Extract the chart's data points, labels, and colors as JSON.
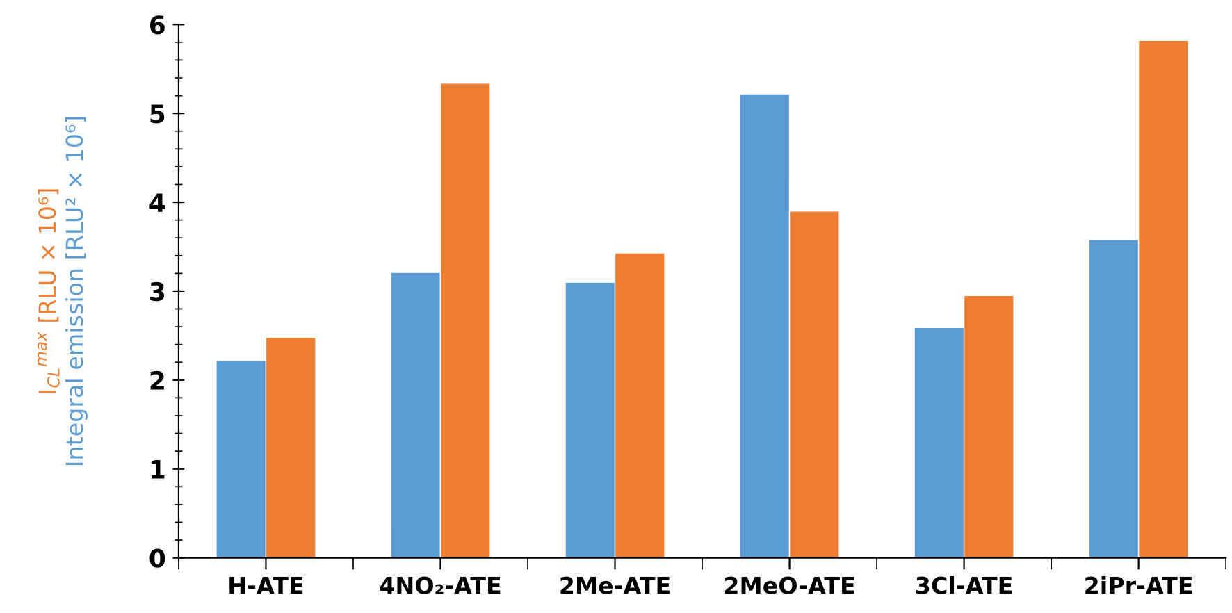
{
  "chart_data": {
    "type": "bar",
    "categories": [
      "H-ATE",
      "4NO₂-ATE",
      "2Me-ATE",
      "2MeO-ATE",
      "3Cl-ATE",
      "2iPr-ATE"
    ],
    "series": [
      {
        "name": "Integral emission [RLU² × 10⁶]",
        "color": "#5b9bd5",
        "values": [
          2.22,
          3.21,
          3.1,
          5.22,
          2.59,
          3.58
        ]
      },
      {
        "name": "I$_{CL}$$^{max}$ [RLU × 10⁶]",
        "color": "#ed7d31",
        "values": [
          2.48,
          5.34,
          3.43,
          3.9,
          2.95,
          5.82
        ]
      }
    ],
    "ylim": [
      0,
      6
    ],
    "yticks": [
      0,
      1,
      2,
      3,
      4,
      5,
      6
    ],
    "grid": false,
    "legend": false
  }
}
